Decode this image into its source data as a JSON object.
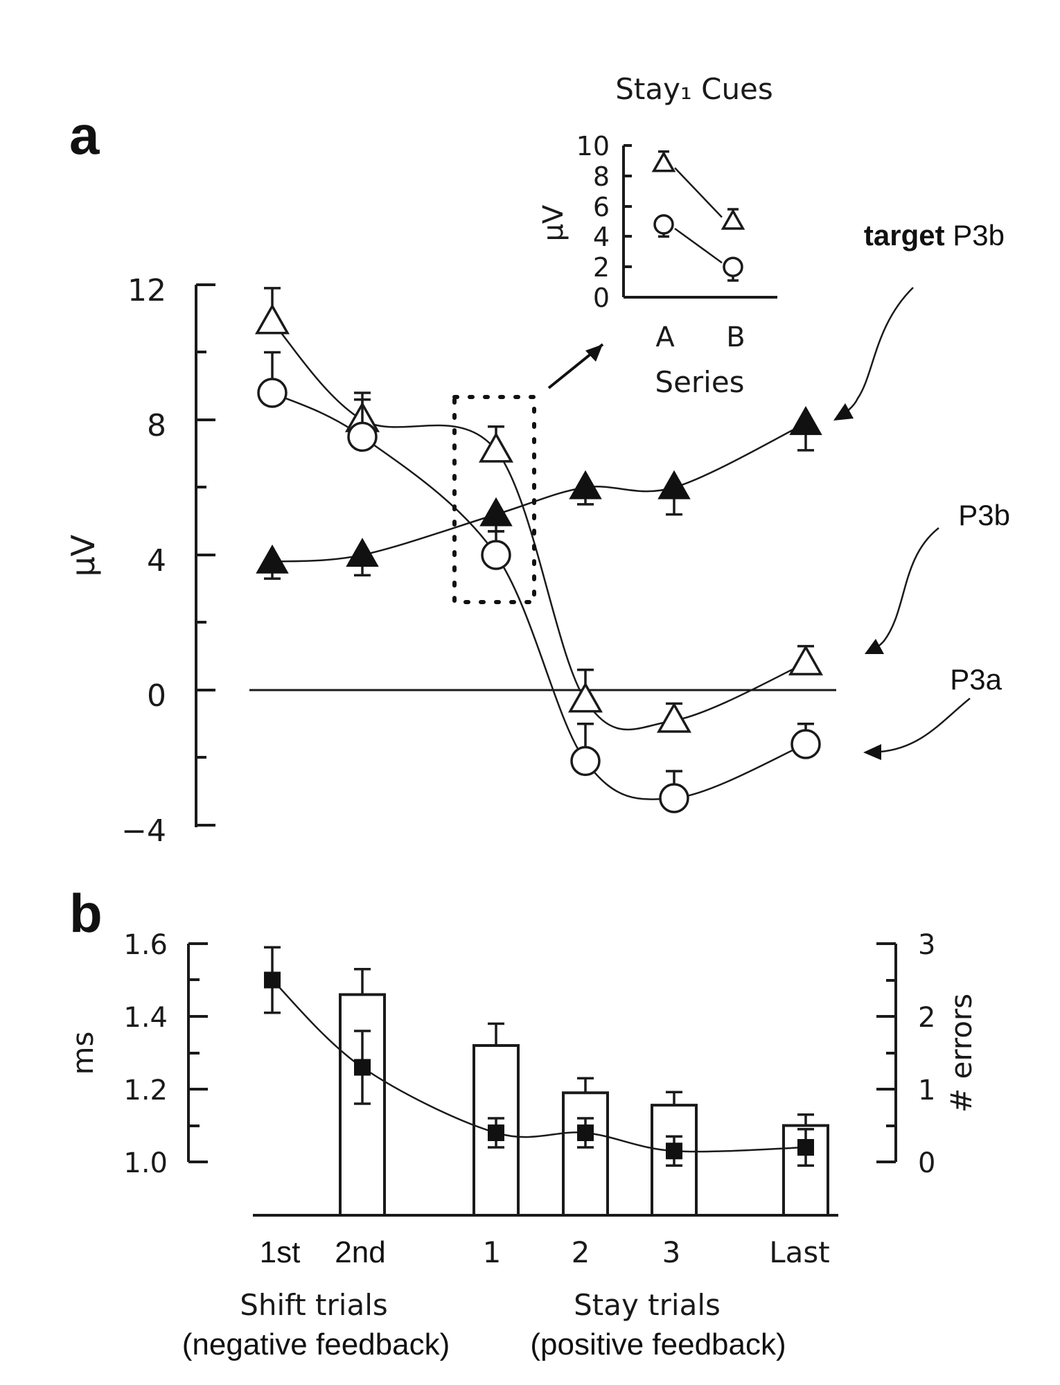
{
  "panel_a": {
    "letter": "a",
    "y_label": "µV",
    "y_ticks": [
      "12",
      "8",
      "4",
      "0",
      "−4"
    ],
    "labels": {
      "target_bold": "target",
      "target_rest": "P3b",
      "p3b": "P3b",
      "p3a": "P3a"
    }
  },
  "inset": {
    "title": "Stay₁ Cues",
    "y_label": "µV",
    "x_label": "Series",
    "y_ticks": [
      "10",
      "8",
      "6",
      "4",
      "2",
      "0"
    ],
    "x_ticks": [
      "A",
      "B"
    ]
  },
  "panel_b": {
    "letter": "b",
    "y_label": "ms",
    "y2_label": "# errors",
    "y_ticks": [
      "1.6",
      "1.4",
      "1.2",
      "1.0"
    ],
    "y2_ticks": [
      "3",
      "2",
      "1",
      "0"
    ],
    "x_ticks": [
      "1st",
      "2nd",
      "1",
      "2",
      "3",
      "Last"
    ],
    "group_labels": [
      {
        "line1": "Shift trials",
        "line2": "(negative feedback)"
      },
      {
        "line1": "Stay trials",
        "line2": "(positive feedback)"
      }
    ]
  },
  "chart_data": [
    {
      "type": "line",
      "panel": "a",
      "x": [
        "1st",
        "2nd",
        "1",
        "2",
        "3",
        "Last"
      ],
      "ylabel": "µV",
      "ylim": [
        -4,
        12
      ],
      "series": [
        {
          "name": "P3b",
          "marker": "open-triangle",
          "values": [
            10.9,
            8.0,
            7.1,
            -0.3,
            -0.9,
            0.8
          ],
          "errors": [
            1.0,
            0.8,
            0.7,
            0.9,
            0.5,
            0.5
          ]
        },
        {
          "name": "P3a",
          "marker": "open-circle",
          "values": [
            8.8,
            7.5,
            4.0,
            -2.1,
            -3.2,
            -1.6
          ],
          "errors": [
            1.2,
            1.1,
            0.7,
            1.1,
            0.8,
            0.6
          ]
        },
        {
          "name": "target P3b",
          "marker": "filled-triangle",
          "values": [
            3.8,
            4.0,
            5.2,
            6.0,
            6.0,
            7.9
          ],
          "errors": [
            0.5,
            0.6,
            0.5,
            0.5,
            0.8,
            0.8
          ]
        }
      ]
    },
    {
      "type": "line",
      "panel": "a-inset",
      "title": "Stay₁ Cues",
      "x": [
        "A",
        "B"
      ],
      "xlabel": "Series",
      "ylabel": "µV",
      "ylim": [
        0,
        10
      ],
      "series": [
        {
          "marker": "open-triangle",
          "values": [
            8.8,
            5.0
          ],
          "errors": [
            0.8,
            0.8
          ]
        },
        {
          "marker": "open-circle",
          "values": [
            4.8,
            2.0
          ],
          "errors": [
            0.8,
            0.9
          ]
        }
      ]
    },
    {
      "type": "bar",
      "panel": "b",
      "categories": [
        "1st",
        "2nd",
        "1",
        "2",
        "3",
        "Last"
      ],
      "ylabel": "ms",
      "ylim": [
        1.0,
        1.6
      ],
      "y2label": "# errors",
      "y2lim": [
        0,
        3
      ],
      "bars": {
        "axis": "y2",
        "values": [
          null,
          2.3,
          1.6,
          0.95,
          0.78,
          0.5
        ],
        "errors": [
          null,
          0.35,
          0.3,
          0.2,
          0.18,
          0.15
        ]
      },
      "line": {
        "axis": "y",
        "marker": "filled-square",
        "values": [
          1.5,
          1.26,
          1.08,
          1.08,
          1.03,
          1.04
        ],
        "errors": [
          0.09,
          0.1,
          0.04,
          0.04,
          0.04,
          0.05
        ]
      }
    }
  ]
}
